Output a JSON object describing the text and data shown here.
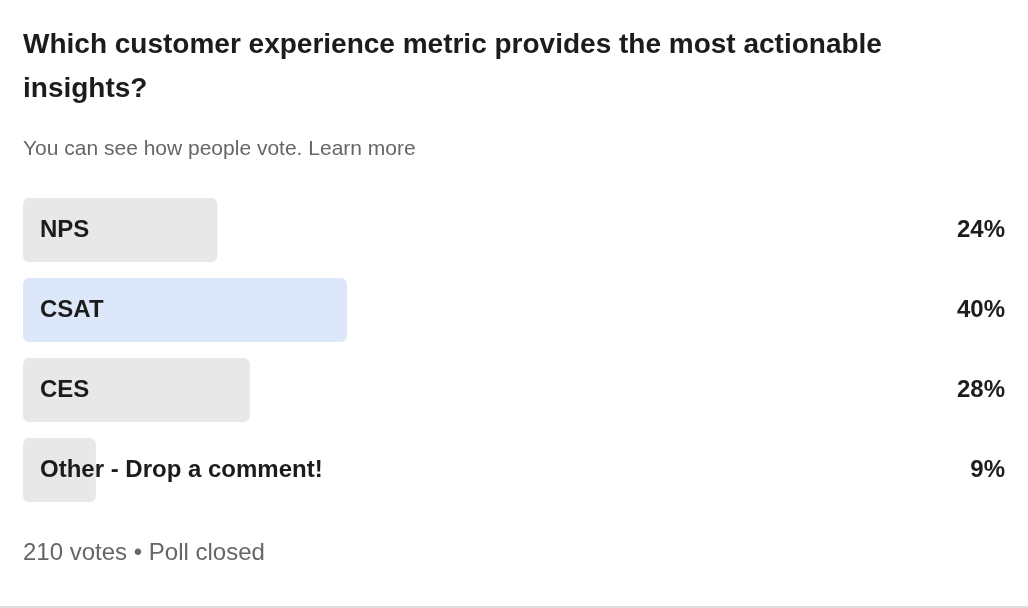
{
  "chart_data": {
    "type": "bar",
    "orientation": "horizontal",
    "title": "Which customer experience metric provides the most actionable insights?",
    "subtitle": "You can see how people vote. Learn more",
    "categories": [
      "NPS",
      "CSAT",
      "CES",
      "Other - Drop a comment!"
    ],
    "values": [
      24,
      40,
      28,
      9
    ],
    "colors": [
      "#e8e8e8",
      "#dce8f9",
      "#e8e8e8",
      "#e8e8e8"
    ],
    "value_labels": [
      "24%",
      "40%",
      "28%",
      "9%"
    ],
    "tick_labels": false,
    "annotations": [
      "210 votes • Poll closed"
    ]
  }
}
